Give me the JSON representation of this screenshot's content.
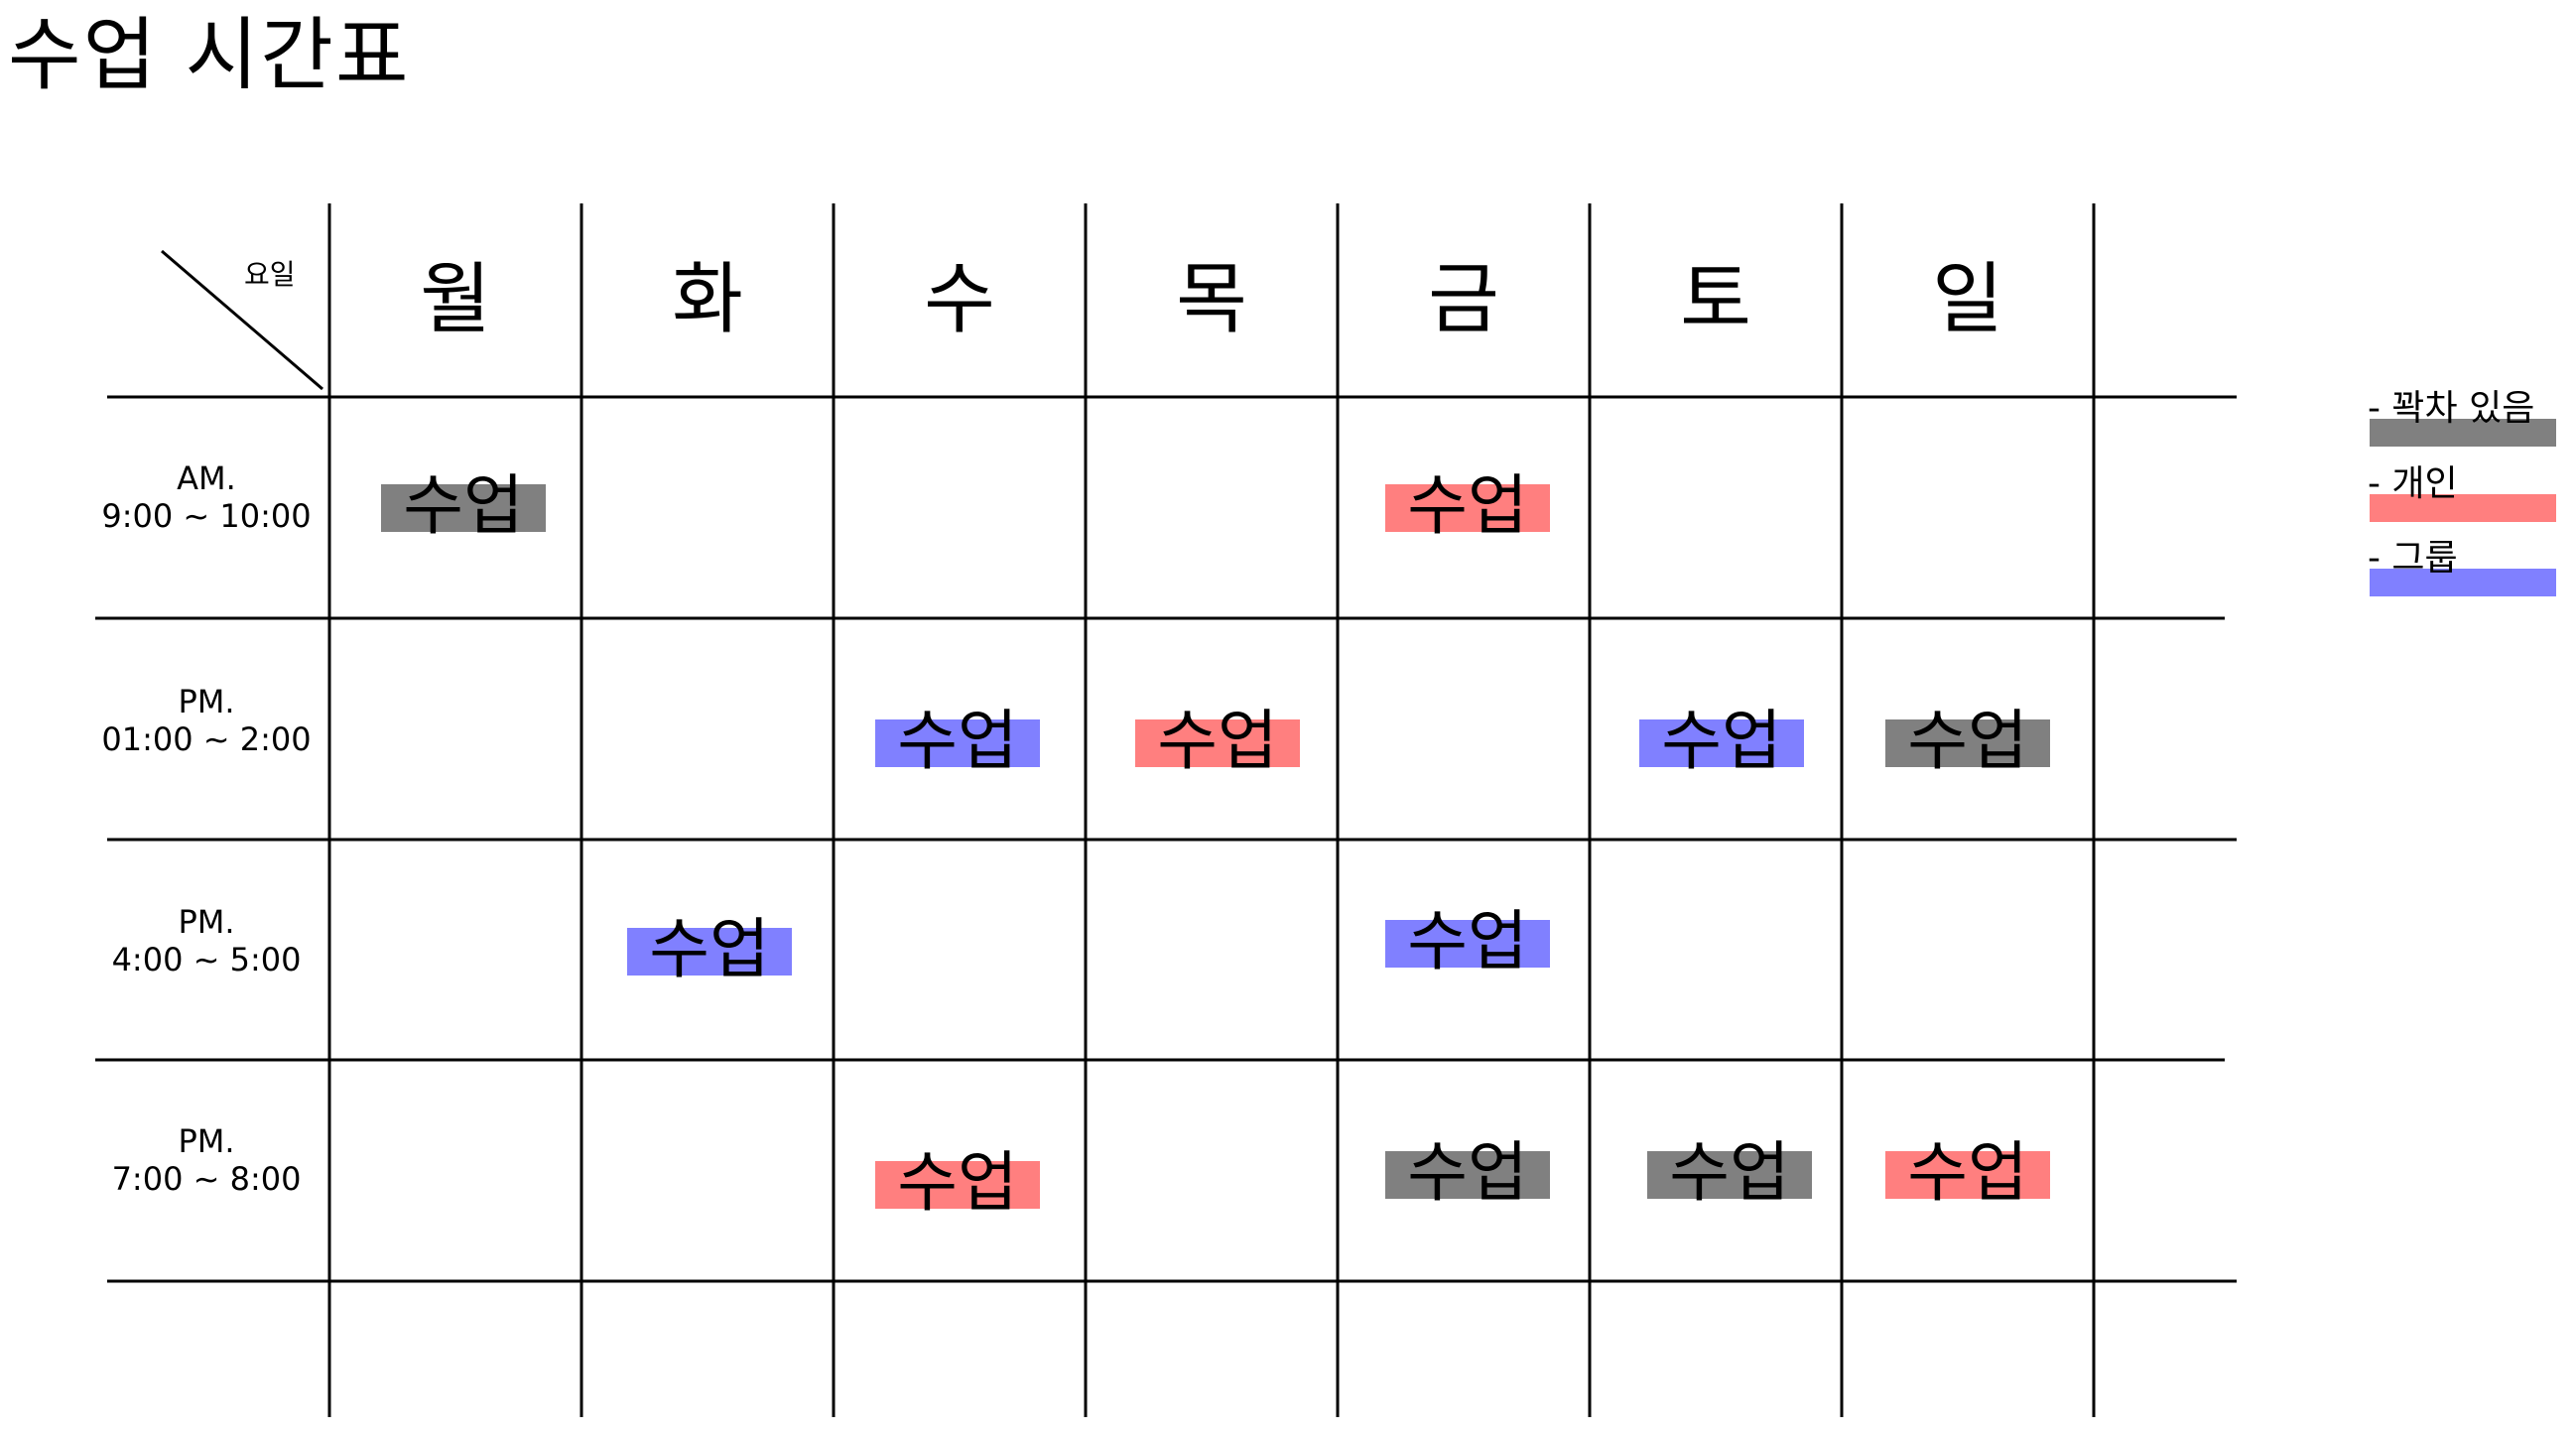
{
  "title": "수업 시간표",
  "corner_label": "요일",
  "days": [
    "월",
    "화",
    "수",
    "목",
    "금",
    "토",
    "일"
  ],
  "times": [
    {
      "period": "AM.",
      "range": "9:00 ~ 10:00"
    },
    {
      "period": "PM.",
      "range": "01:00 ~ 2:00"
    },
    {
      "period": "PM.",
      "range": "4:00 ~ 5:00"
    },
    {
      "period": "PM.",
      "range": "7:00 ~ 8:00"
    }
  ],
  "class_label": "수업",
  "colors": {
    "full": "#808080",
    "personal": "#ff7f7f",
    "group": "#8080ff"
  },
  "legend": [
    {
      "type": "full",
      "label": "- 꽉차 있음"
    },
    {
      "type": "personal",
      "label": "- 개인"
    },
    {
      "type": "group",
      "label": "- 그룹"
    }
  ],
  "classes": [
    {
      "row": 0,
      "day": 0,
      "type": "full"
    },
    {
      "row": 0,
      "day": 4,
      "type": "personal"
    },
    {
      "row": 1,
      "day": 2,
      "type": "group"
    },
    {
      "row": 1,
      "day": 3,
      "type": "personal"
    },
    {
      "row": 1,
      "day": 5,
      "type": "group"
    },
    {
      "row": 1,
      "day": 6,
      "type": "full"
    },
    {
      "row": 2,
      "day": 1,
      "type": "group"
    },
    {
      "row": 2,
      "day": 4,
      "type": "group"
    },
    {
      "row": 3,
      "day": 2,
      "type": "personal"
    },
    {
      "row": 3,
      "day": 4,
      "type": "full"
    },
    {
      "row": 3,
      "day": 5,
      "type": "full"
    },
    {
      "row": 3,
      "day": 6,
      "type": "personal"
    }
  ]
}
